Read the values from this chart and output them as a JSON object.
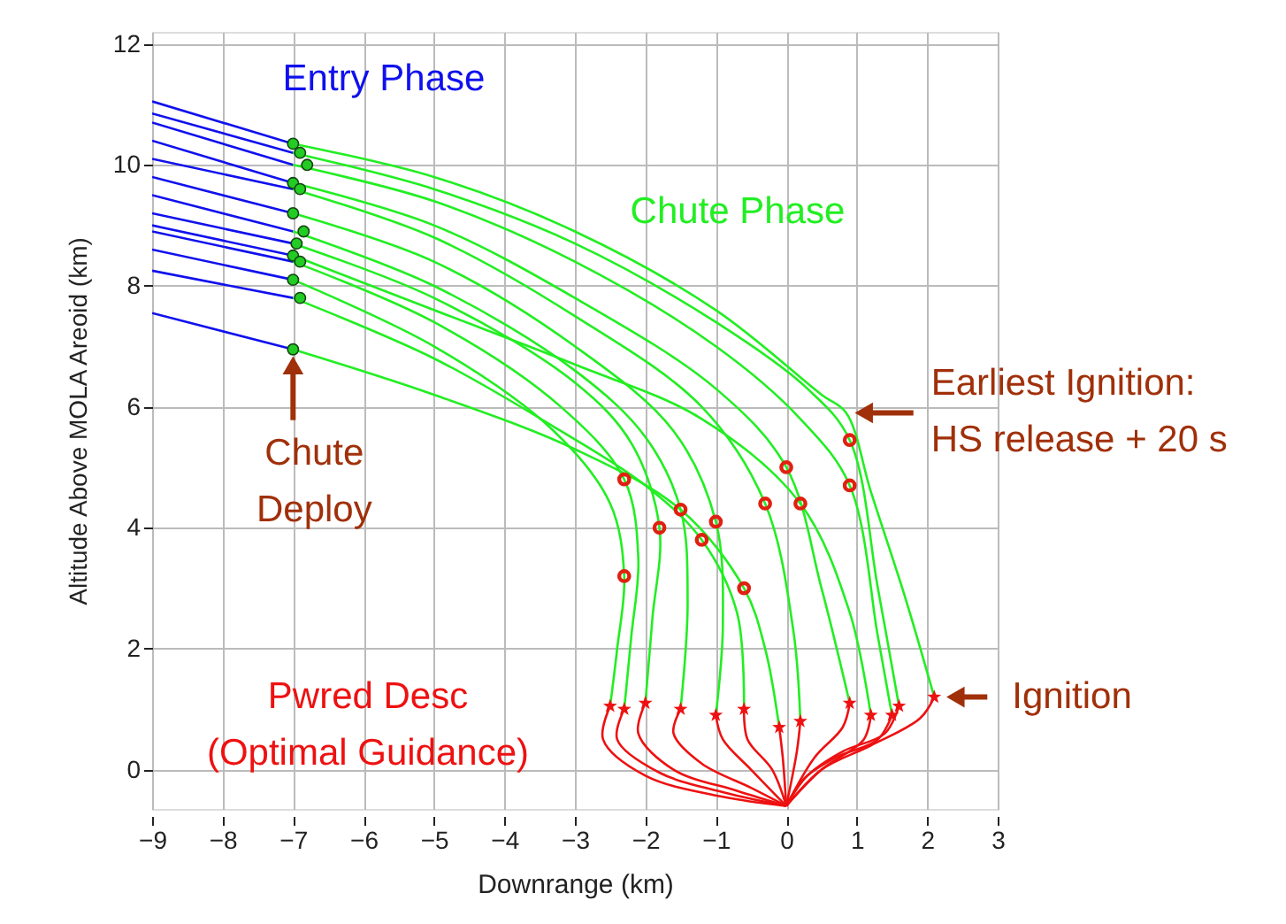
{
  "chart_data": {
    "type": "line",
    "xlabel": "Downrange (km)",
    "ylabel": "Altitude Above MOLA Areoid (km)",
    "xlim": [
      -9,
      3
    ],
    "ylim": [
      -0.65,
      12.2
    ],
    "xticks": [
      -9,
      -8,
      -7,
      -6,
      -5,
      -4,
      -3,
      -2,
      -1,
      0,
      1,
      2,
      3
    ],
    "yticks": [
      0,
      2,
      4,
      6,
      8,
      10,
      12
    ],
    "grid": true,
    "line_style": "solid",
    "series": [
      {
        "color": "#1010ee",
        "x": [
          -9,
          -7
        ],
        "values": [
          11.05,
          10.35
        ]
      },
      {
        "color": "#1010ee",
        "x": [
          -9,
          -7
        ],
        "values": [
          10.85,
          10.2
        ]
      },
      {
        "color": "#1010ee",
        "x": [
          -9,
          -7
        ],
        "values": [
          10.7,
          10.0
        ]
      },
      {
        "color": "#1010ee",
        "x": [
          -9,
          -7
        ],
        "values": [
          10.4,
          9.7
        ]
      },
      {
        "color": "#1010ee",
        "x": [
          -9,
          -7
        ],
        "values": [
          10.1,
          9.6
        ]
      },
      {
        "color": "#1010ee",
        "x": [
          -9,
          -7
        ],
        "values": [
          9.8,
          9.2
        ]
      },
      {
        "color": "#1010ee",
        "x": [
          -9,
          -7
        ],
        "values": [
          9.5,
          8.9
        ]
      },
      {
        "color": "#1010ee",
        "x": [
          -9,
          -7
        ],
        "values": [
          9.2,
          8.7
        ]
      },
      {
        "color": "#1010ee",
        "x": [
          -9,
          -7
        ],
        "values": [
          9.0,
          8.5
        ]
      },
      {
        "color": "#1010ee",
        "x": [
          -9,
          -7
        ],
        "values": [
          8.9,
          8.4
        ]
      },
      {
        "color": "#1010ee",
        "x": [
          -9,
          -7
        ],
        "values": [
          8.6,
          8.1
        ]
      },
      {
        "color": "#1010ee",
        "x": [
          -9,
          -7
        ],
        "values": [
          8.25,
          7.8
        ]
      },
      {
        "color": "#1010ee",
        "x": [
          -9,
          -7
        ],
        "values": [
          7.55,
          6.95
        ]
      },
      {
        "color": "#22ee22",
        "x": [
          -7,
          -5,
          -3,
          -1,
          0.5,
          0.85,
          1.2,
          1.7,
          2.1
        ],
        "values": [
          10.35,
          9.8,
          8.9,
          7.6,
          6.2,
          5.9,
          4.6,
          2.8,
          1.2
        ]
      },
      {
        "color": "#22ee22",
        "x": [
          -7,
          -5,
          -3,
          -1,
          0.3,
          0.9,
          1.3,
          1.6
        ],
        "values": [
          10.2,
          9.6,
          8.7,
          7.4,
          6.3,
          5.45,
          3.0,
          1.05
        ]
      },
      {
        "color": "#22ee22",
        "x": [
          -7,
          -5,
          -3,
          -1,
          0.2,
          0.9,
          1.3,
          1.5
        ],
        "values": [
          10.0,
          9.4,
          8.4,
          7.0,
          5.8,
          4.7,
          2.2,
          0.9
        ]
      },
      {
        "color": "#22ee22",
        "x": [
          -7,
          -5,
          -3,
          -1,
          0,
          0.5,
          0.9
        ],
        "values": [
          9.7,
          9.0,
          7.8,
          6.3,
          5.0,
          3.0,
          1.1
        ]
      },
      {
        "color": "#22ee22",
        "x": [
          -7,
          -5,
          -3,
          -1.2,
          -0.3,
          0.1,
          0.2
        ],
        "values": [
          9.6,
          8.8,
          7.5,
          6.0,
          4.4,
          2.3,
          0.8
        ]
      },
      {
        "color": "#22ee22",
        "x": [
          -7,
          -5,
          -3,
          -1.6,
          -1.0,
          -0.9,
          -1.0
        ],
        "values": [
          9.2,
          8.4,
          7.0,
          5.6,
          4.1,
          2.4,
          0.9
        ]
      },
      {
        "color": "#22ee22",
        "x": [
          -7,
          -5,
          -3,
          -2.0,
          -1.5,
          -1.4,
          -1.5
        ],
        "values": [
          8.9,
          8.0,
          6.6,
          5.5,
          4.3,
          2.8,
          1.0
        ]
      },
      {
        "color": "#22ee22",
        "x": [
          -7,
          -5,
          -3,
          -1.2,
          0.2,
          0.9,
          1.2
        ],
        "values": [
          8.5,
          7.6,
          6.7,
          5.8,
          4.4,
          2.6,
          0.9
        ]
      },
      {
        "color": "#22ee22",
        "x": [
          -7,
          -5,
          -3,
          -2.2,
          -1.8,
          -1.9,
          -2.0
        ],
        "values": [
          8.7,
          7.8,
          6.4,
          5.4,
          4.0,
          2.5,
          1.1
        ]
      },
      {
        "color": "#22ee22",
        "x": [
          -7,
          -5,
          -3.2,
          -2.3,
          -2.1,
          -2.2,
          -2.3
        ],
        "values": [
          8.4,
          7.4,
          6.0,
          4.8,
          3.5,
          2.2,
          1.0
        ]
      },
      {
        "color": "#22ee22",
        "x": [
          -7,
          -5,
          -3.3,
          -2.5,
          -2.3,
          -2.4,
          -2.5
        ],
        "values": [
          8.1,
          7.0,
          5.6,
          4.4,
          3.2,
          2.0,
          1.05
        ]
      },
      {
        "color": "#22ee22",
        "x": [
          -7,
          -5,
          -3.2,
          -2.0,
          -1.2,
          -0.7,
          -0.6
        ],
        "values": [
          7.8,
          6.8,
          5.6,
          4.7,
          3.8,
          2.6,
          1.0
        ]
      },
      {
        "color": "#22ee22",
        "x": [
          -7,
          -5,
          -3,
          -1.5,
          -0.6,
          -0.3,
          -0.1
        ],
        "values": [
          6.95,
          6.2,
          5.3,
          4.3,
          3.0,
          2.0,
          0.7
        ]
      },
      {
        "color": "#ee1111",
        "x": [
          2.1,
          1.9,
          1.2,
          0.5,
          0
        ],
        "values": [
          1.2,
          0.85,
          0.4,
          0.0,
          -0.6
        ]
      },
      {
        "color": "#ee1111",
        "x": [
          1.6,
          1.4,
          0.8,
          0.3,
          0
        ],
        "values": [
          1.05,
          0.6,
          0.3,
          -0.1,
          -0.6
        ]
      },
      {
        "color": "#ee1111",
        "x": [
          1.5,
          1.3,
          0.7,
          0.25,
          0
        ],
        "values": [
          0.9,
          0.5,
          0.2,
          -0.15,
          -0.6
        ]
      },
      {
        "color": "#ee1111",
        "x": [
          0.9,
          0.8,
          0.4,
          0
        ],
        "values": [
          1.1,
          0.7,
          0.2,
          -0.6
        ]
      },
      {
        "color": "#ee1111",
        "x": [
          0.2,
          0.15,
          0
        ],
        "values": [
          0.8,
          0.3,
          -0.6
        ]
      },
      {
        "color": "#ee1111",
        "x": [
          -1.0,
          -0.9,
          -0.5,
          0
        ],
        "values": [
          0.9,
          0.5,
          0.0,
          -0.6
        ]
      },
      {
        "color": "#ee1111",
        "x": [
          -1.5,
          -1.6,
          -1.2,
          -0.5,
          0
        ],
        "values": [
          1.0,
          0.6,
          0.1,
          -0.3,
          -0.6
        ]
      },
      {
        "color": "#ee1111",
        "x": [
          1.2,
          1.1,
          0.5,
          0
        ],
        "values": [
          0.9,
          0.5,
          0.0,
          -0.6
        ]
      },
      {
        "color": "#ee1111",
        "x": [
          -2.0,
          -2.1,
          -1.6,
          -0.7,
          0
        ],
        "values": [
          1.1,
          0.6,
          0.0,
          -0.35,
          -0.6
        ]
      },
      {
        "color": "#ee1111",
        "x": [
          -2.3,
          -2.4,
          -1.8,
          -0.8,
          0
        ],
        "values": [
          1.0,
          0.5,
          -0.05,
          -0.4,
          -0.6
        ]
      },
      {
        "color": "#ee1111",
        "x": [
          -2.5,
          -2.6,
          -2.0,
          -0.9,
          0
        ],
        "values": [
          1.05,
          0.5,
          -0.1,
          -0.45,
          -0.6
        ]
      },
      {
        "color": "#ee1111",
        "x": [
          -0.6,
          -0.55,
          -0.2,
          0
        ],
        "values": [
          1.0,
          0.5,
          0.0,
          -0.6
        ]
      },
      {
        "color": "#ee1111",
        "x": [
          -0.1,
          -0.05,
          0
        ],
        "values": [
          0.7,
          0.2,
          -0.6
        ]
      },
      {
        "type": "scatter",
        "marker": "circle",
        "color": "#22cc22",
        "x": [
          -7,
          -6.9,
          -6.8,
          -7,
          -6.9,
          -7,
          -6.85,
          -6.95,
          -7,
          -6.9,
          -7,
          -6.9,
          -7
        ],
        "values": [
          10.35,
          10.2,
          10.0,
          9.7,
          9.6,
          9.2,
          8.9,
          8.7,
          8.5,
          8.4,
          8.1,
          7.8,
          6.95
        ]
      },
      {
        "type": "scatter",
        "marker": "circle",
        "color": "#e02010",
        "x": [
          0.9,
          0.9,
          0,
          -0.3,
          -1.0,
          -1.5,
          0.2,
          -1.8,
          -2.3,
          -2.3,
          -1.2,
          -0.6
        ],
        "values": [
          5.45,
          4.7,
          5.0,
          4.4,
          4.1,
          4.3,
          4.4,
          4.0,
          4.8,
          3.2,
          3.8,
          3.0
        ]
      },
      {
        "type": "scatter",
        "marker": "star",
        "color": "#ee1111",
        "x": [
          2.1,
          1.6,
          1.5,
          0.9,
          0.2,
          -1.0,
          -1.5,
          1.2,
          -2.0,
          -2.3,
          -2.5,
          -0.6,
          -0.1
        ],
        "values": [
          1.2,
          1.05,
          0.9,
          1.1,
          0.8,
          0.9,
          1.0,
          0.9,
          1.1,
          1.0,
          1.05,
          1.0,
          0.7
        ]
      }
    ],
    "annotations": [
      "Entry Phase",
      "Chute Phase",
      "Pwred Desc\n(Optimal Guidance)",
      {
        "text": "Chute\nDeploy",
        "x": -7,
        "y": 6.95
      },
      {
        "text": "Earliest Ignition:\nHS release + 20 s",
        "x": 0.85,
        "y": 5.9
      },
      {
        "text": "Ignition",
        "x": 2.1,
        "y": 1.2
      }
    ]
  }
}
